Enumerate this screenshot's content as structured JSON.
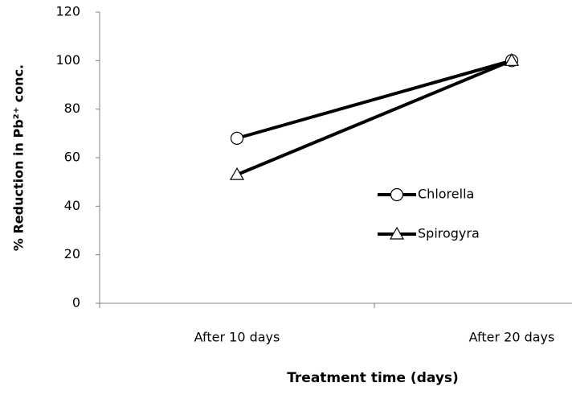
{
  "chart_data": {
    "type": "line",
    "ylabel": "% Reduction in Pb²⁺ conc.",
    "xlabel": "Treatment time (days)",
    "categories": [
      "After 10 days",
      "After 20 days"
    ],
    "series": [
      {
        "name": "Chlorella",
        "color": "#000000",
        "marker": "circle",
        "values": [
          68,
          100
        ]
      },
      {
        "name": "Spirogyra",
        "color": "#000000",
        "marker": "triangle",
        "values": [
          53,
          100
        ]
      }
    ],
    "ylim": [
      0,
      120
    ],
    "yticks": [
      0,
      20,
      40,
      60,
      80,
      100,
      120
    ],
    "grid": false,
    "legend": "right"
  }
}
